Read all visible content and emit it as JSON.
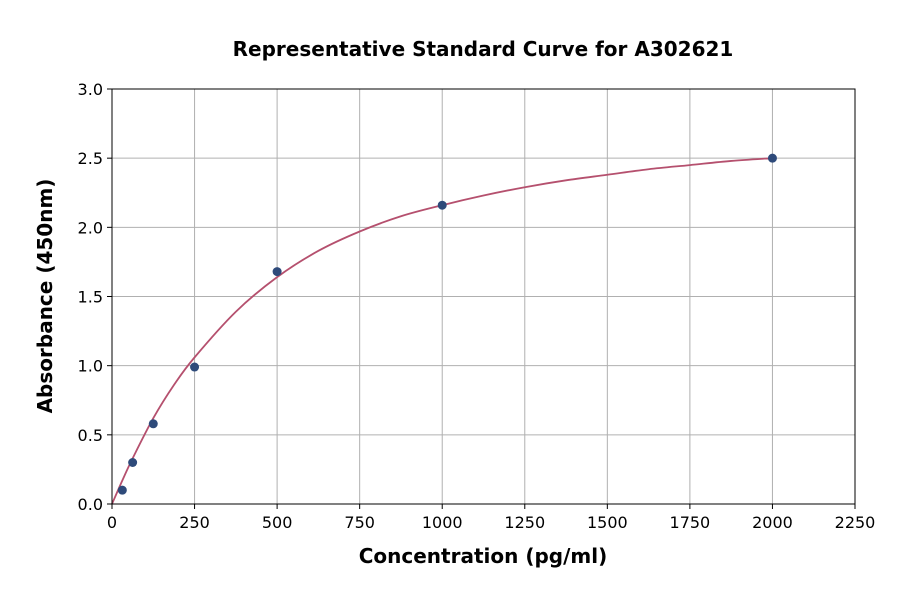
{
  "chart_data": {
    "type": "scatter",
    "title": "Representative Standard Curve for A302621",
    "xlabel": "Concentration (pg/ml)",
    "ylabel": "Absorbance (450nm)",
    "xlim": [
      0,
      2250
    ],
    "ylim": [
      0,
      3.0
    ],
    "xticks": [
      0,
      250,
      500,
      750,
      1000,
      1250,
      1500,
      1750,
      2000,
      2250
    ],
    "yticks": [
      0.0,
      0.5,
      1.0,
      1.5,
      2.0,
      2.5,
      3.0
    ],
    "xtick_labels": [
      "0",
      "250",
      "500",
      "750",
      "1000",
      "1250",
      "1500",
      "1750",
      "2000",
      "2250"
    ],
    "ytick_labels": [
      "0.0",
      "0.5",
      "1.0",
      "1.5",
      "2.0",
      "2.5",
      "3.0"
    ],
    "grid": true,
    "series": [
      {
        "type": "scatter",
        "x": [
          31.25,
          62.5,
          125,
          250,
          500,
          1000,
          2000
        ],
        "y": [
          0.1,
          0.3,
          0.58,
          0.99,
          1.68,
          2.16,
          2.5
        ],
        "color": "#2e4a7a"
      },
      {
        "type": "line",
        "x": [
          0,
          31.25,
          62.5,
          125,
          187.5,
          250,
          375,
          500,
          625,
          750,
          875,
          1000,
          1125,
          1250,
          1375,
          1500,
          1625,
          1750,
          1875,
          2000
        ],
        "y": [
          0.0,
          0.17,
          0.33,
          0.62,
          0.86,
          1.06,
          1.39,
          1.64,
          1.83,
          1.97,
          2.08,
          2.16,
          2.23,
          2.29,
          2.34,
          2.38,
          2.42,
          2.45,
          2.48,
          2.5
        ],
        "color": "#b5506e"
      }
    ]
  }
}
